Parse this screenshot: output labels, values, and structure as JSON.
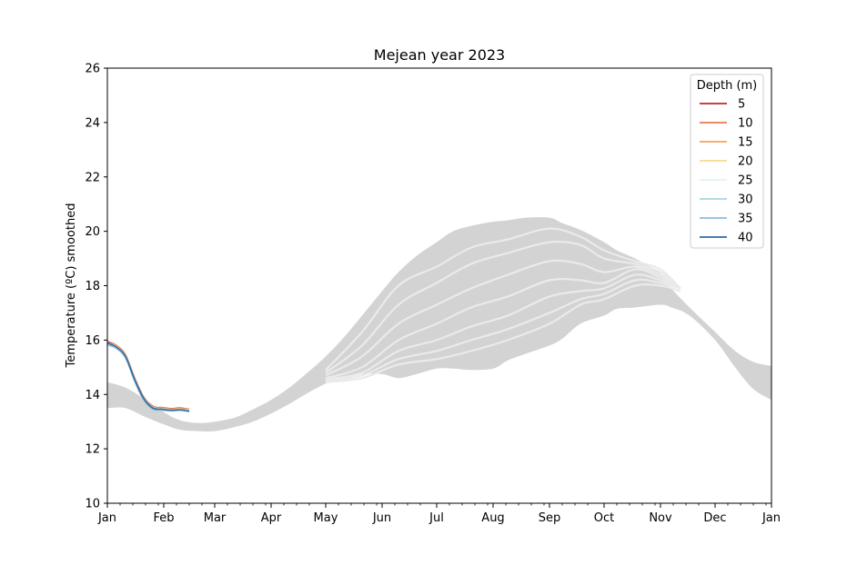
{
  "chart_data": {
    "type": "line",
    "title": "Mejean year 2023",
    "xlabel": "",
    "ylabel": "Temperature (ºC) smoothed",
    "xlim": [
      0,
      365
    ],
    "ylim": [
      10,
      26
    ],
    "yticks": [
      10,
      12,
      14,
      16,
      18,
      20,
      22,
      24,
      26
    ],
    "x_tick_labels": [
      {
        "day": 0,
        "label": "Jan"
      },
      {
        "day": 31,
        "label": "Feb"
      },
      {
        "day": 59,
        "label": "Mar"
      },
      {
        "day": 90,
        "label": "Apr"
      },
      {
        "day": 120,
        "label": "May"
      },
      {
        "day": 151,
        "label": "Jun"
      },
      {
        "day": 181,
        "label": "Jul"
      },
      {
        "day": 212,
        "label": "Aug"
      },
      {
        "day": 243,
        "label": "Sep"
      },
      {
        "day": 273,
        "label": "Oct"
      },
      {
        "day": 304,
        "label": "Nov"
      },
      {
        "day": 334,
        "label": "Dec"
      },
      {
        "day": 365,
        "label": "Jan"
      }
    ],
    "grid": false,
    "legend": {
      "title": "Depth (m)",
      "placement": "top-right",
      "entries": [
        {
          "label": "5",
          "color": "#c1272d"
        },
        {
          "label": "10",
          "color": "#e97a52"
        },
        {
          "label": "15",
          "color": "#f5a35a"
        },
        {
          "label": "20",
          "color": "#f7db8e"
        },
        {
          "label": "25",
          "color": "#e2f2f5"
        },
        {
          "label": "30",
          "color": "#a6d6e3"
        },
        {
          "label": "35",
          "color": "#8fbcdb"
        },
        {
          "label": "40",
          "color": "#2d6aa9"
        }
      ]
    },
    "climatology_band": {
      "color": "#d3d3d3",
      "x": [
        0,
        10,
        20,
        31,
        40,
        50,
        59,
        70,
        80,
        90,
        100,
        110,
        120,
        130,
        140,
        151,
        160,
        170,
        181,
        190,
        200,
        212,
        220,
        230,
        243,
        250,
        260,
        273,
        280,
        290,
        304,
        310,
        320,
        334,
        345,
        355,
        365
      ],
      "upper": [
        14.45,
        14.25,
        13.85,
        13.35,
        13.05,
        12.95,
        13.0,
        13.15,
        13.45,
        13.8,
        14.25,
        14.8,
        15.4,
        16.1,
        16.9,
        17.8,
        18.5,
        19.1,
        19.6,
        20.0,
        20.2,
        20.35,
        20.4,
        20.5,
        20.5,
        20.3,
        20.05,
        19.6,
        19.3,
        19.0,
        18.45,
        17.9,
        17.2,
        16.3,
        15.6,
        15.2,
        15.05
      ],
      "lower": [
        13.5,
        13.5,
        13.2,
        12.9,
        12.7,
        12.65,
        12.65,
        12.8,
        13.0,
        13.3,
        13.65,
        14.05,
        14.4,
        14.65,
        14.75,
        14.75,
        14.6,
        14.75,
        14.95,
        14.95,
        14.9,
        14.95,
        15.25,
        15.5,
        15.8,
        16.05,
        16.6,
        16.9,
        17.15,
        17.2,
        17.3,
        17.2,
        16.9,
        16.0,
        15.0,
        14.2,
        13.8
      ]
    },
    "climatology_lines": {
      "color": "#eaeaea",
      "x": [
        120,
        140,
        160,
        181,
        200,
        220,
        243,
        260,
        273,
        290,
        304,
        315
      ],
      "series": [
        [
          14.9,
          16.3,
          18.0,
          18.7,
          19.4,
          19.7,
          20.1,
          19.8,
          19.3,
          18.9,
          18.6,
          17.9
        ],
        [
          14.8,
          15.8,
          17.3,
          18.1,
          18.8,
          19.2,
          19.6,
          19.5,
          19.0,
          18.8,
          18.5,
          17.9
        ],
        [
          14.7,
          15.4,
          16.6,
          17.3,
          17.9,
          18.4,
          18.9,
          18.8,
          18.5,
          18.7,
          18.4,
          17.9
        ],
        [
          14.6,
          15.0,
          16.0,
          16.6,
          17.2,
          17.6,
          18.2,
          18.2,
          18.1,
          18.6,
          18.3,
          17.9
        ],
        [
          14.55,
          14.8,
          15.6,
          16.0,
          16.5,
          16.9,
          17.6,
          17.8,
          17.9,
          18.4,
          18.2,
          17.9
        ],
        [
          14.5,
          14.7,
          15.3,
          15.6,
          16.0,
          16.4,
          17.0,
          17.5,
          17.7,
          18.2,
          18.1,
          17.9
        ],
        [
          14.45,
          14.6,
          15.1,
          15.3,
          15.6,
          16.0,
          16.6,
          17.3,
          17.5,
          18.0,
          18.0,
          17.8
        ]
      ]
    },
    "series": [
      {
        "name": "5",
        "color": "#c1272d",
        "x": [
          0,
          5,
          10,
          15,
          20,
          25,
          30,
          35,
          40,
          45
        ],
        "values": [
          15.95,
          15.8,
          15.45,
          14.6,
          13.9,
          13.55,
          13.52,
          13.48,
          13.5,
          13.45
        ]
      },
      {
        "name": "10",
        "color": "#e97a52",
        "x": [
          0,
          5,
          10,
          15,
          20,
          25,
          30,
          35,
          40,
          45
        ],
        "values": [
          15.93,
          15.79,
          15.44,
          14.59,
          13.89,
          13.54,
          13.51,
          13.47,
          13.49,
          13.44
        ]
      },
      {
        "name": "15",
        "color": "#f5a35a",
        "x": [
          0,
          5,
          10,
          15,
          20,
          25,
          30,
          35,
          40,
          45
        ],
        "values": [
          15.92,
          15.78,
          15.43,
          14.58,
          13.88,
          13.53,
          13.5,
          13.46,
          13.48,
          13.43
        ]
      },
      {
        "name": "20",
        "color": "#f7db8e",
        "x": [
          0,
          5,
          10,
          15,
          20,
          25,
          30,
          35,
          40,
          45
        ],
        "values": [
          15.9,
          15.76,
          15.41,
          14.56,
          13.86,
          13.52,
          13.48,
          13.44,
          13.46,
          13.41
        ]
      },
      {
        "name": "25",
        "color": "#e2f2f5",
        "x": [
          0,
          5,
          10,
          15,
          20,
          25,
          30,
          35,
          40,
          45
        ],
        "values": [
          15.85,
          15.7,
          15.35,
          14.5,
          13.8,
          13.45,
          13.42,
          13.4,
          13.42,
          13.38
        ]
      },
      {
        "name": "30",
        "color": "#a6d6e3",
        "x": [
          0,
          5,
          10,
          15,
          20,
          25,
          30,
          35,
          40,
          45
        ],
        "values": [
          15.82,
          15.68,
          15.33,
          14.48,
          13.78,
          13.44,
          13.41,
          13.39,
          13.41,
          13.37
        ]
      },
      {
        "name": "35",
        "color": "#8fbcdb",
        "x": [
          0,
          5,
          10,
          15,
          20,
          25,
          30,
          35,
          40,
          45
        ],
        "values": [
          15.83,
          15.72,
          15.37,
          14.52,
          13.82,
          13.47,
          13.44,
          13.41,
          13.42,
          13.39
        ]
      },
      {
        "name": "40",
        "color": "#2d6aa9",
        "x": [
          0,
          5,
          10,
          15,
          20,
          25,
          30,
          35,
          40,
          45
        ],
        "values": [
          15.9,
          15.74,
          15.4,
          14.55,
          13.85,
          13.5,
          13.46,
          13.42,
          13.44,
          13.38
        ]
      }
    ]
  }
}
